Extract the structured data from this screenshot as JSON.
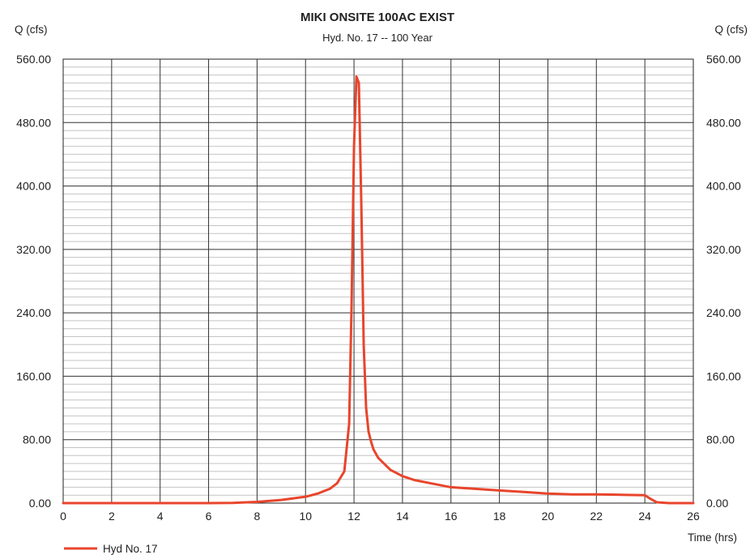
{
  "chart_data": {
    "type": "line",
    "title": "MIKI ONSITE 100AC EXIST",
    "subtitle": "Hyd. No. 17 -- 100 Year",
    "ylabel_left": "Q (cfs)",
    "ylabel_right": "Q (cfs)",
    "xlabel": "Time (hrs)",
    "xlim": [
      0,
      26
    ],
    "ylim": [
      0,
      560
    ],
    "x_ticks": [
      "0",
      "2",
      "4",
      "6",
      "8",
      "10",
      "12",
      "14",
      "16",
      "18",
      "20",
      "22",
      "24",
      "26"
    ],
    "y_ticks": [
      "0.00",
      "80.00",
      "160.00",
      "240.00",
      "320.00",
      "400.00",
      "480.00",
      "560.00"
    ],
    "grid": true,
    "legend_position": "bottom-left",
    "series": [
      {
        "name": "Hyd No. 17",
        "color": "#e8452c",
        "x": [
          0,
          2,
          4,
          6,
          7,
          8,
          9,
          10,
          10.5,
          11,
          11.3,
          11.6,
          11.8,
          11.9,
          12.0,
          12.1,
          12.2,
          12.3,
          12.4,
          12.5,
          12.6,
          12.7,
          12.8,
          13.0,
          13.5,
          14.0,
          14.5,
          15.0,
          16.0,
          17.0,
          18.0,
          19.0,
          20.0,
          21.0,
          22.0,
          23.0,
          24.0,
          24.2,
          24.5,
          25.0,
          26.0
        ],
        "y": [
          0,
          0,
          0,
          0,
          0.3,
          1.5,
          4,
          8,
          12,
          18,
          25,
          40,
          100,
          250,
          450,
          538,
          530,
          380,
          200,
          120,
          90,
          78,
          68,
          57,
          42,
          34,
          29,
          26,
          20,
          18,
          16,
          14,
          12,
          11,
          11,
          10.5,
          10,
          6,
          1,
          0,
          0
        ]
      }
    ]
  }
}
